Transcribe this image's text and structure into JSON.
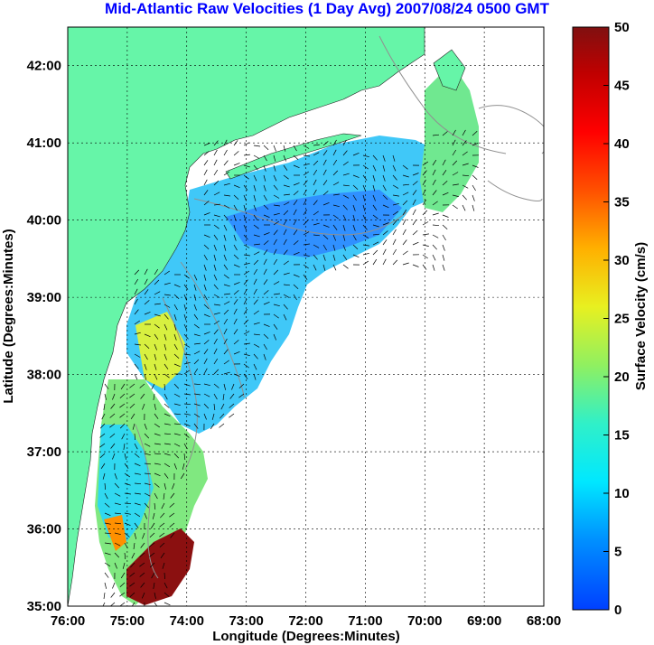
{
  "title": "Mid-Atlantic Raw Velocities (1 Day Avg) 2007/08/24 0500 GMT",
  "x_axis": {
    "label": "Longitude (Degrees:Minutes)",
    "ticks": [
      "76:00",
      "75:00",
      "74:00",
      "73:00",
      "72:00",
      "71:00",
      "70:00",
      "69:00",
      "68:00"
    ]
  },
  "y_axis": {
    "label": "Latitude (Degrees:Minutes)",
    "ticks": [
      "35:00",
      "36:00",
      "37:00",
      "38:00",
      "39:00",
      "40:00",
      "41:00",
      "42:00"
    ]
  },
  "colorbar": {
    "label": "Surface Velocity (cm/s)",
    "ticks": [
      "0",
      "5",
      "10",
      "15",
      "20",
      "25",
      "30",
      "35",
      "40",
      "45",
      "50"
    ],
    "min": 0,
    "max": 50
  },
  "colors": {
    "land": "#66f5a8",
    "title": "#0000ff",
    "contour": "#909090"
  }
}
